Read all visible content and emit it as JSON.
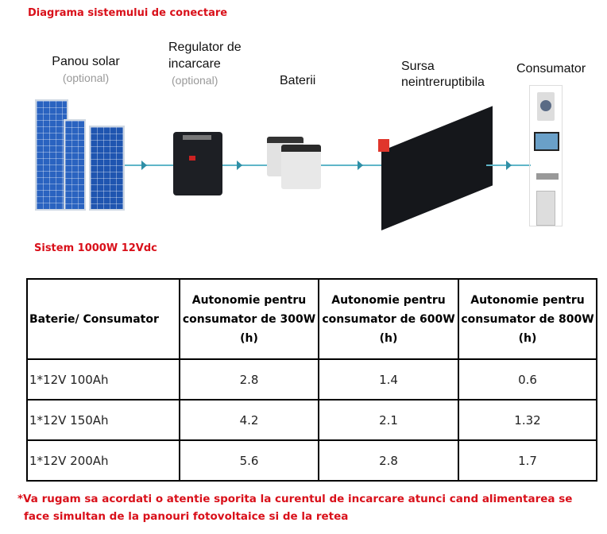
{
  "diagram": {
    "title": "Diagrama sistemului de conectare",
    "nodes": [
      {
        "label": "Panou solar",
        "sub": "(optional)",
        "icon": "solar-panel-icon"
      },
      {
        "label": "Regulator de incarcare",
        "sub": "(optional)",
        "icon": "charge-controller-icon"
      },
      {
        "label": "Baterii",
        "icon": "battery-icon"
      },
      {
        "label": "Sursa neintreruptibila",
        "icon": "inverter-icon"
      },
      {
        "label": "Consumator",
        "icon": "appliances-icon"
      }
    ],
    "arrow_color": "#2f8fa6"
  },
  "system": {
    "title": "Sistem 1000W 12Vdc"
  },
  "table": {
    "headers": [
      "Baterie/ Consumator",
      "Autonomie pentru consumator de 300W (h)",
      "Autonomie pentru consumator de 600W (h)",
      "Autonomie pentru consumator de 800W (h)"
    ],
    "rows": [
      [
        "1*12V 100Ah",
        "2.8",
        "1.4",
        "0.6"
      ],
      [
        "1*12V 150Ah",
        "4.2",
        "2.1",
        "1.32"
      ],
      [
        "1*12V 200Ah",
        "5.6",
        "2.8",
        "1.7"
      ]
    ]
  },
  "note": {
    "line1": "*Va rugam sa acordati o atentie sporita la curentul de incarcare atunci cand alimentarea se",
    "line2": "face simultan de la panouri fotovoltaice si de la retea",
    "color": "#d9101a"
  }
}
